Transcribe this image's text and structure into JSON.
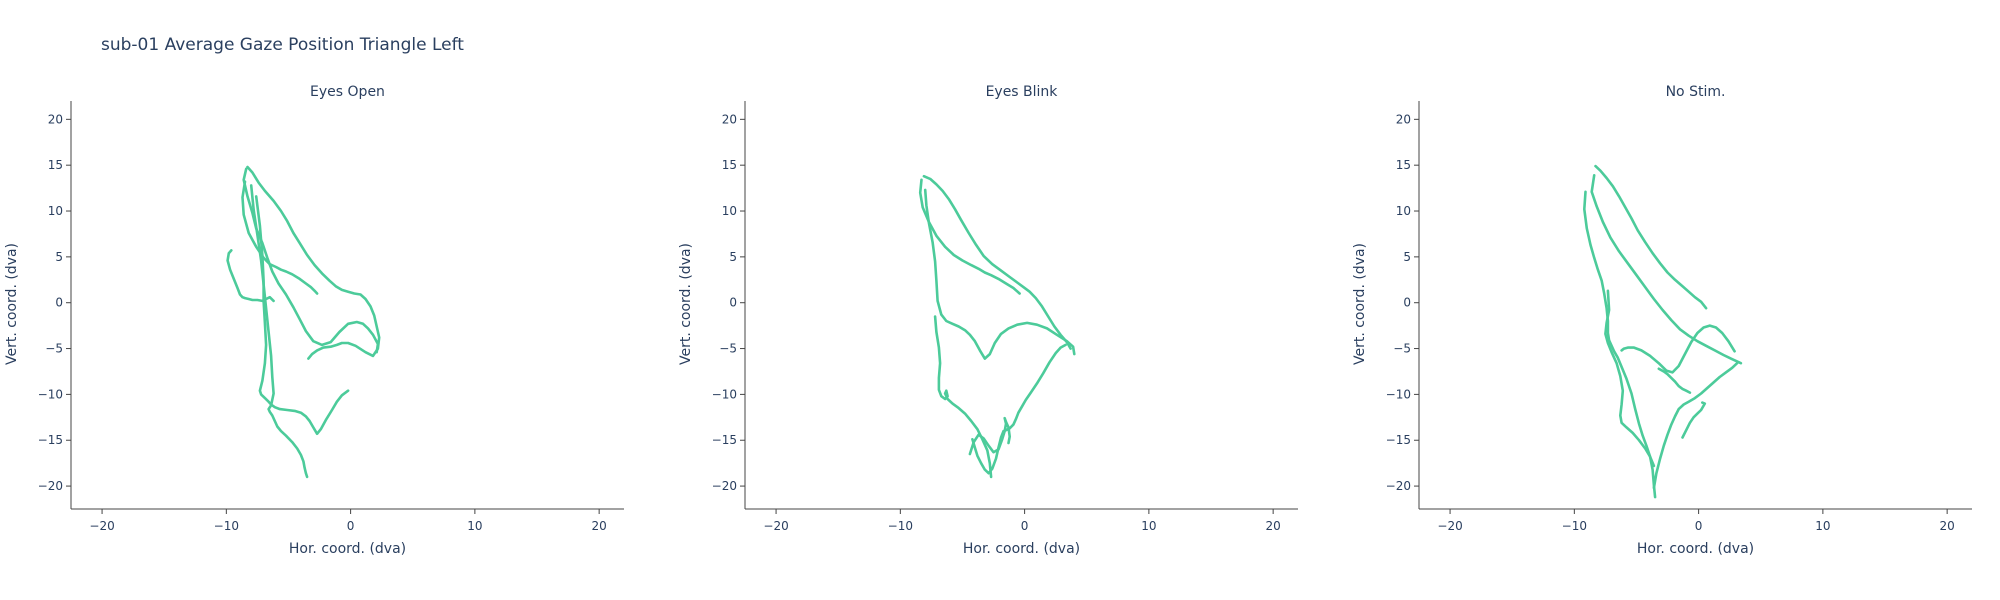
{
  "title": "sub-01 Average Gaze Position Triangle Left",
  "colors": {
    "trace": "#4ccb9a",
    "axis": "#444444",
    "text": "#2a3f5f",
    "background": "#ffffff"
  },
  "chart_data": [
    {
      "type": "line",
      "title": "Eyes Open",
      "xlabel": "Hor. coord. (dva)",
      "ylabel": "Vert. coord. (dva)",
      "xlim": [
        -22.5,
        22
      ],
      "ylim": [
        -22.5,
        22
      ],
      "xticks": [
        -20,
        -10,
        0,
        10,
        20
      ],
      "yticks": [
        20,
        15,
        10,
        5,
        0,
        -5,
        -10,
        -15,
        -20
      ],
      "grid": false,
      "series": [
        {
          "x": [
            -8.3,
            -7.9,
            -7.4,
            -6.9,
            -6.2,
            -5.6,
            -5.1,
            -4.6,
            -4.1,
            -3.5,
            -2.9,
            -2.3,
            -1.7,
            -1.2,
            -0.7,
            -0.2,
            0.3,
            0.8,
            1.2,
            1.6,
            1.9,
            2.1,
            2.3,
            2.2,
            1.8,
            1.2,
            0.4,
            -0.2,
            -0.7,
            -1.1,
            -1.6,
            -2.2,
            -2.7,
            -3.1,
            -3.4
          ],
          "y": [
            14.8,
            14.2,
            13.1,
            12.2,
            11.1,
            10.0,
            8.9,
            7.6,
            6.5,
            5.2,
            4.1,
            3.2,
            2.4,
            1.8,
            1.4,
            1.2,
            1.0,
            0.9,
            0.4,
            -0.4,
            -1.4,
            -2.6,
            -3.8,
            -5.0,
            -5.8,
            -5.4,
            -4.7,
            -4.4,
            -4.4,
            -4.6,
            -4.8,
            -4.9,
            -5.2,
            -5.6,
            -6.1
          ]
        },
        {
          "x": [
            -8.4,
            -8.6,
            -8.3,
            -7.9,
            -7.6,
            -7.1,
            -6.7,
            -6.3,
            -5.8,
            -5.2,
            -4.6,
            -4.1,
            -3.6,
            -3.0,
            -2.3,
            -1.6,
            -0.9,
            -0.2,
            0.5,
            1.0,
            1.4,
            1.8,
            2.2,
            2.1
          ],
          "y": [
            14.6,
            13.4,
            11.6,
            9.8,
            8.1,
            6.5,
            4.9,
            3.4,
            2.1,
            0.9,
            -0.5,
            -1.8,
            -3.1,
            -4.2,
            -4.6,
            -4.3,
            -3.2,
            -2.3,
            -2.1,
            -2.3,
            -2.8,
            -3.5,
            -4.5,
            -5.4
          ]
        },
        {
          "x": [
            -8.5,
            -8.7,
            -8.6,
            -8.2,
            -7.6,
            -7.0,
            -6.5,
            -6.0,
            -5.6,
            -5.2,
            -4.7,
            -4.1,
            -3.6,
            -3.2,
            -2.9,
            -2.7
          ],
          "y": [
            13.2,
            11.5,
            9.6,
            7.6,
            6.1,
            4.9,
            4.2,
            3.9,
            3.6,
            3.4,
            3.1,
            2.6,
            2.1,
            1.7,
            1.3,
            1.0
          ]
        },
        {
          "x": [
            -8.0,
            -7.8,
            -7.5,
            -7.2,
            -7.0,
            -6.8,
            -6.6,
            -6.4,
            -6.3,
            -6.2,
            -6.4,
            -6.6,
            -6.5,
            -6.3,
            -6.1,
            -5.9,
            -5.6,
            -5.2,
            -4.7,
            -4.3,
            -4.0,
            -3.8,
            -3.7,
            -3.6,
            -3.5
          ],
          "y": [
            12.8,
            10.1,
            7.4,
            4.6,
            2.0,
            -0.6,
            -3.2,
            -5.8,
            -8.1,
            -9.9,
            -11.2,
            -11.6,
            -11.9,
            -12.3,
            -12.9,
            -13.5,
            -14.0,
            -14.5,
            -15.2,
            -15.9,
            -16.6,
            -17.3,
            -18.0,
            -18.6,
            -19.0
          ]
        },
        {
          "x": [
            -7.6,
            -7.3,
            -7.1,
            -7.0,
            -7.0,
            -6.9,
            -6.8,
            -6.9,
            -7.1,
            -7.3,
            -7.2,
            -6.9,
            -6.6,
            -6.4,
            -6.1,
            -5.7,
            -5.1,
            -4.5,
            -4.0,
            -3.6,
            -3.3,
            -3.0,
            -2.7,
            -2.4,
            -2.0,
            -1.5,
            -1.1,
            -0.7,
            -0.2
          ],
          "y": [
            11.6,
            8.4,
            5.1,
            2.4,
            0.2,
            -2.2,
            -4.6,
            -6.6,
            -8.5,
            -9.6,
            -10.0,
            -10.4,
            -10.8,
            -11.1,
            -11.4,
            -11.6,
            -11.7,
            -11.8,
            -12.0,
            -12.4,
            -12.9,
            -13.6,
            -14.3,
            -13.8,
            -12.8,
            -11.7,
            -10.8,
            -10.1,
            -9.6
          ]
        },
        {
          "x": [
            -9.6,
            -9.8,
            -9.9,
            -9.7,
            -9.4,
            -9.1,
            -8.9,
            -8.7,
            -8.5,
            -8.2,
            -7.9,
            -7.5,
            -7.1,
            -6.8,
            -6.5,
            -6.2
          ],
          "y": [
            5.7,
            5.4,
            4.6,
            3.6,
            2.6,
            1.6,
            0.9,
            0.6,
            0.5,
            0.4,
            0.3,
            0.3,
            0.2,
            0.4,
            0.6,
            0.2
          ]
        }
      ]
    },
    {
      "type": "line",
      "title": "Eyes Blink",
      "xlabel": "Hor. coord. (dva)",
      "ylabel": "Vert. coord. (dva)",
      "xlim": [
        -22.5,
        22
      ],
      "ylim": [
        -22.5,
        22
      ],
      "xticks": [
        -20,
        -10,
        0,
        10,
        20
      ],
      "yticks": [
        20,
        15,
        10,
        5,
        0,
        -5,
        -10,
        -15,
        -20
      ],
      "grid": false,
      "series": [
        {
          "x": [
            -8.1,
            -7.6,
            -7.1,
            -6.6,
            -6.1,
            -5.6,
            -5.1,
            -4.5,
            -3.9,
            -3.3,
            -2.6,
            -1.9,
            -1.2,
            -0.6,
            -0.1,
            0.4,
            0.9,
            1.4,
            1.9,
            2.4,
            2.9,
            3.4,
            3.7
          ],
          "y": [
            13.8,
            13.5,
            12.9,
            12.2,
            11.3,
            10.2,
            9.0,
            7.6,
            6.3,
            5.1,
            4.2,
            3.5,
            2.8,
            2.2,
            1.7,
            1.2,
            0.5,
            -0.4,
            -1.5,
            -2.6,
            -3.5,
            -4.3,
            -5.0
          ]
        },
        {
          "x": [
            -8.3,
            -8.4,
            -8.2,
            -7.7,
            -7.1,
            -6.4,
            -5.7,
            -5.0,
            -4.3,
            -3.7,
            -3.2,
            -2.7,
            -2.1,
            -1.5,
            -0.9,
            -0.4
          ],
          "y": [
            13.4,
            12.0,
            10.4,
            8.8,
            7.3,
            6.1,
            5.2,
            4.6,
            4.1,
            3.7,
            3.3,
            3.0,
            2.6,
            2.1,
            1.6,
            1.0
          ]
        },
        {
          "x": [
            -8.0,
            -7.9,
            -7.7,
            -7.4,
            -7.2,
            -7.1,
            -7.0,
            -6.7,
            -6.3,
            -5.8,
            -5.3,
            -4.8,
            -4.4,
            -4.0,
            -3.6,
            -3.2,
            -2.8,
            -2.4,
            -1.9,
            -1.3,
            -0.6,
            0.2,
            1.0,
            1.8,
            2.6,
            3.4,
            3.9,
            4.0
          ],
          "y": [
            12.3,
            10.6,
            8.7,
            6.6,
            4.5,
            2.4,
            0.2,
            -1.3,
            -2.0,
            -2.3,
            -2.6,
            -3.0,
            -3.5,
            -4.2,
            -5.2,
            -6.1,
            -5.6,
            -4.4,
            -3.4,
            -2.8,
            -2.4,
            -2.2,
            -2.4,
            -2.8,
            -3.5,
            -4.2,
            -4.8,
            -5.6
          ]
        },
        {
          "x": [
            -7.2,
            -7.1,
            -6.9,
            -6.8,
            -6.9,
            -6.9,
            -6.7,
            -6.4,
            -6.2,
            -6.3,
            -6.4,
            -6.2,
            -5.8,
            -5.3,
            -4.8,
            -4.3,
            -3.8,
            -3.4,
            -3.0,
            -2.8,
            -2.7
          ],
          "y": [
            -1.5,
            -3.2,
            -4.9,
            -6.6,
            -8.2,
            -9.5,
            -10.2,
            -10.5,
            -10.2,
            -9.6,
            -9.9,
            -10.5,
            -11.0,
            -11.5,
            -12.1,
            -12.9,
            -13.8,
            -14.9,
            -16.1,
            -17.5,
            -19.0
          ]
        },
        {
          "x": [
            -4.2,
            -4.0,
            -3.8,
            -3.5,
            -3.2,
            -2.9,
            -2.6,
            -2.3,
            -2.1,
            -1.9,
            -1.7,
            -1.5,
            -1.2,
            -0.9,
            -0.7,
            -0.5,
            -0.2,
            0.1,
            0.5,
            1.0,
            1.5,
            2.0,
            2.5,
            2.9,
            3.3
          ],
          "y": [
            -14.9,
            -15.8,
            -16.7,
            -17.5,
            -18.2,
            -18.6,
            -18.1,
            -17.0,
            -15.8,
            -14.7,
            -14.0,
            -13.9,
            -13.7,
            -13.3,
            -12.7,
            -12.0,
            -11.3,
            -10.6,
            -9.8,
            -8.8,
            -7.7,
            -6.5,
            -5.5,
            -4.9,
            -4.6
          ]
        },
        {
          "x": [
            -4.4,
            -4.1,
            -3.7,
            -3.3,
            -2.9,
            -2.5,
            -2.1,
            -1.8,
            -1.6,
            -1.5,
            -1.6,
            -1.5,
            -1.3,
            -1.2,
            -1.3
          ],
          "y": [
            -16.5,
            -15.2,
            -14.4,
            -14.8,
            -15.6,
            -16.3,
            -16.0,
            -14.9,
            -14.0,
            -13.2,
            -12.6,
            -13.0,
            -13.6,
            -14.6,
            -15.3
          ]
        }
      ]
    },
    {
      "type": "line",
      "title": "No Stim.",
      "xlabel": "Hor. coord. (dva)",
      "ylabel": "Vert. coord. (dva)",
      "xlim": [
        -22.5,
        22
      ],
      "ylim": [
        -22.5,
        22
      ],
      "xticks": [
        -20,
        -10,
        0,
        10,
        20
      ],
      "yticks": [
        20,
        15,
        10,
        5,
        0,
        -5,
        -10,
        -15,
        -20
      ],
      "grid": false,
      "series": [
        {
          "x": [
            -8.3,
            -7.9,
            -7.4,
            -6.9,
            -6.4,
            -5.9,
            -5.4,
            -4.9,
            -4.3,
            -3.7,
            -3.1,
            -2.5,
            -1.9,
            -1.3,
            -0.8,
            -0.3,
            0.2,
            0.6
          ],
          "y": [
            14.9,
            14.4,
            13.6,
            12.7,
            11.6,
            10.4,
            9.2,
            7.9,
            6.6,
            5.4,
            4.3,
            3.3,
            2.5,
            1.8,
            1.2,
            0.6,
            0.1,
            -0.6
          ]
        },
        {
          "x": [
            -8.4,
            -8.6,
            -8.2,
            -7.7,
            -7.1,
            -6.4,
            -5.7,
            -5.0,
            -4.3,
            -3.6,
            -2.9,
            -2.2,
            -1.5,
            -0.8,
            -0.1,
            0.6,
            1.3,
            2.0,
            2.6,
            3.1,
            3.4
          ],
          "y": [
            13.9,
            12.1,
            10.5,
            8.8,
            7.1,
            5.6,
            4.3,
            3.0,
            1.7,
            0.4,
            -0.8,
            -1.9,
            -2.9,
            -3.6,
            -4.2,
            -4.7,
            -5.2,
            -5.7,
            -6.1,
            -6.4,
            -6.6
          ]
        },
        {
          "x": [
            -9.1,
            -9.2,
            -9.0,
            -8.7,
            -8.4,
            -8.1,
            -7.8,
            -7.6,
            -7.4,
            -7.3,
            -7.3,
            -7.2,
            -7.0,
            -6.8,
            -6.5,
            -6.2,
            -5.8,
            -5.4,
            -5.1,
            -4.8,
            -4.5,
            -4.2,
            -3.9,
            -3.7,
            -3.6,
            -3.5
          ],
          "y": [
            12.1,
            10.2,
            8.1,
            6.3,
            4.9,
            3.6,
            2.4,
            1.0,
            -0.6,
            -2.0,
            -3.3,
            -4.1,
            -4.7,
            -5.3,
            -6.0,
            -7.0,
            -8.3,
            -9.9,
            -11.6,
            -13.2,
            -14.5,
            -15.6,
            -16.8,
            -18.2,
            -19.9,
            -21.2
          ]
        },
        {
          "x": [
            -7.3,
            -7.2,
            -7.4,
            -7.5,
            -7.3,
            -7.0,
            -6.6,
            -6.3,
            -6.1,
            -6.2,
            -6.3,
            -6.2,
            -5.8,
            -5.3,
            -4.8,
            -4.3,
            -3.9,
            -3.6
          ],
          "y": [
            1.3,
            -0.8,
            -2.2,
            -3.4,
            -4.4,
            -5.4,
            -6.6,
            -8.0,
            -9.6,
            -11.1,
            -12.3,
            -13.1,
            -13.6,
            -14.2,
            -15.0,
            -15.9,
            -16.8,
            -17.8
          ]
        },
        {
          "x": [
            -6.2,
            -6.0,
            -5.7,
            -5.2,
            -4.6,
            -3.9,
            -3.2,
            -2.6,
            -2.1,
            -1.6,
            -1.1,
            -0.6,
            -0.1,
            0.4,
            0.9,
            1.4,
            1.9,
            2.4,
            2.9
          ],
          "y": [
            -5.2,
            -5.0,
            -4.9,
            -4.9,
            -5.2,
            -5.8,
            -6.6,
            -7.4,
            -7.6,
            -6.9,
            -5.6,
            -4.3,
            -3.3,
            -2.7,
            -2.5,
            -2.7,
            -3.3,
            -4.2,
            -5.3
          ]
        },
        {
          "x": [
            -3.6,
            -3.4,
            -3.1,
            -2.8,
            -2.5,
            -2.2,
            -1.9,
            -1.6,
            -1.2,
            -0.8,
            -0.3,
            0.2,
            0.7,
            1.2,
            1.7,
            2.2,
            2.7,
            3.1
          ],
          "y": [
            -20.2,
            -18.6,
            -17.0,
            -15.6,
            -14.4,
            -13.3,
            -12.4,
            -11.6,
            -11.1,
            -10.8,
            -10.4,
            -9.9,
            -9.3,
            -8.7,
            -8.1,
            -7.6,
            -7.1,
            -6.6
          ]
        },
        {
          "x": [
            -1.3,
            -1.0,
            -0.7,
            -0.4,
            -0.1,
            0.2,
            0.5,
            0.3
          ],
          "y": [
            -14.7,
            -13.9,
            -13.1,
            -12.5,
            -12.1,
            -11.7,
            -11.0,
            -10.9
          ]
        },
        {
          "x": [
            -3.2,
            -2.8,
            -2.5,
            -2.2,
            -1.9,
            -1.6,
            -1.3,
            -1.0,
            -0.7
          ],
          "y": [
            -7.2,
            -7.5,
            -7.8,
            -8.2,
            -8.6,
            -9.1,
            -9.4,
            -9.6,
            -9.8
          ]
        }
      ]
    }
  ]
}
